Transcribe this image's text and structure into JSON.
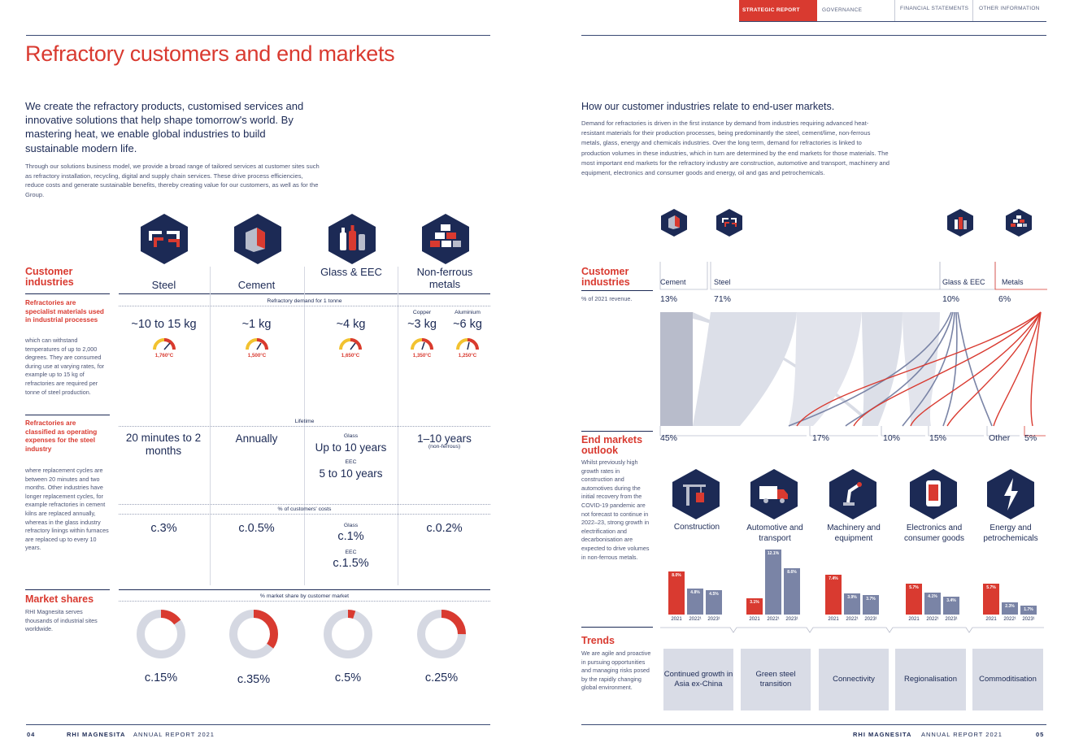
{
  "nav_tabs": [
    {
      "label": "STRATEGIC REPORT",
      "active": true
    },
    {
      "label": "GOVERNANCE",
      "active": false
    },
    {
      "label": "FINANCIAL STATEMENTS",
      "active": false
    },
    {
      "label": "OTHER INFORMATION",
      "active": false
    }
  ],
  "left": {
    "title": "Refractory customers and end markets",
    "intro": "We create the refractory products, customised services and innovative solutions that help shape tomorrow's world. By mastering heat, we enable global industries to build sustainable modern life.",
    "body": "Through our solutions business model, we provide a broad range of tailored services at customer sites such as refractory installation, recycling, digital and supply chain services. These drive process efficiencies, reduce costs and generate sustainable benefits, thereby creating value for our customers, as well as for the Group.",
    "customer_industries_label": "Customer industries",
    "columns": [
      "Steel",
      "Cement",
      "Glass & EEC",
      "Non-ferrous metals"
    ],
    "section1": {
      "heading": "Refractories are specialist materials used in industrial processes",
      "text": "which can withstand temperatures of up to 2,000 degrees. They are consumed during use at varying rates, for example up to 15 kg of refractories are required per tonne of steel production.",
      "band": "Refractory demand for 1 tonne",
      "values": [
        "~10 to 15 kg",
        "~1 kg",
        "~4 kg",
        "~3 kg",
        "~6 kg"
      ],
      "copper_label": "Copper",
      "aluminium_label": "Aluminium",
      "temps": [
        "1,760°C",
        "1,500°C",
        "1,650°C",
        "1,350°C",
        "1,250°C"
      ]
    },
    "section2": {
      "heading": "Refractories are classified as operating expenses for the steel industry",
      "text": "where replacement cycles are between 20 minutes and two months. Other industries have longer replacement cycles, for example refractories in cement kilns are replaced annually, whereas in the glass industry refractory linings within furnaces are replaced up to every 10 years.",
      "band": "Lifetime",
      "steel": "20 minutes to 2 months",
      "cement": "Annually",
      "glass_label": "Glass",
      "glass": "Up to 10 years",
      "eec_label": "EEC",
      "eec": "5 to 10 years",
      "nonferrous": "1–10 years",
      "nonferrous_note": "(non-ferrous)",
      "band2": "% of customers' costs",
      "cost_steel": "c.3%",
      "cost_cement": "c.0.5%",
      "cost_glass_label": "Glass",
      "cost_glass": "c.1%",
      "cost_eec_label": "EEC",
      "cost_eec": "c.1.5%",
      "cost_nonferrous": "c.0.2%"
    },
    "section3": {
      "heading": "Market shares",
      "text": "RHI Magnesita serves thousands of industrial sites worldwide.",
      "band": "% market share by customer market",
      "shares": [
        "c.15%",
        "c.35%",
        "c.5%",
        "c.25%"
      ],
      "share_values": [
        15,
        35,
        5,
        25
      ]
    },
    "footer_page": "04",
    "footer_brand": "RHI MAGNESITA",
    "footer_report": "ANNUAL REPORT 2021"
  },
  "right": {
    "heading": "How our customer industries relate to end-user markets.",
    "body": "Demand for refractories is driven in the first instance by demand from industries requiring advanced heat-resistant materials for their production processes, being predominantly the steel, cement/lime, non-ferrous metals, glass, energy and chemicals industries. Over the long term, demand for refractories is linked to production volumes in these industries, which in turn are determined by the end markets for those materials. The most important end markets for the refractory industry are construction, automotive and transport, machinery and equipment, electronics and consumer goods and energy, oil and gas and petrochemicals.",
    "customer_industries_label": "Customer industries",
    "revenue_note": "% of 2021 revenue.",
    "customers": [
      {
        "name": "Cement",
        "pct": "13%"
      },
      {
        "name": "Steel",
        "pct": "71%"
      },
      {
        "name": "Glass & EEC",
        "pct": "10%"
      },
      {
        "name": "Metals",
        "pct": "6%"
      }
    ],
    "end_markets_label": "End markets outlook",
    "end_markets_text": "Whilst previously high growth rates in construction and automotives during the initial recovery from the COVID-19 pandemic are not forecast to continue in 2022–23, strong growth in electrification and decarbonisation are expected to drive volumes in non-ferrous metals.",
    "end_pcts": [
      "45%",
      "17%",
      "10%",
      "15%",
      "Other",
      "5%"
    ],
    "markets": [
      {
        "name": "Construction",
        "values": [
          "8.0%",
          "4.8%",
          "4.5%"
        ],
        "nums": [
          8.0,
          4.8,
          4.5
        ]
      },
      {
        "name": "Automotive and transport",
        "values": [
          "3.1%",
          "12.1%",
          "8.6%"
        ],
        "nums": [
          3.1,
          12.1,
          8.6
        ]
      },
      {
        "name": "Machinery and equipment",
        "values": [
          "7.4%",
          "3.9%",
          "3.7%"
        ],
        "nums": [
          7.4,
          3.9,
          3.7
        ]
      },
      {
        "name": "Electronics and consumer goods",
        "values": [
          "5.7%",
          "4.1%",
          "3.4%"
        ],
        "nums": [
          5.7,
          4.1,
          3.4
        ]
      },
      {
        "name": "Energy and petrochemicals",
        "values": [
          "5.7%",
          "2.3%",
          "1.7%"
        ],
        "nums": [
          5.7,
          2.3,
          1.7
        ]
      }
    ],
    "years": [
      "2021",
      "2022¹",
      "2023¹"
    ],
    "trends_label": "Trends",
    "trends_text": "We are agile and proactive in pursuing opportunities and managing risks posed by the rapidly changing global environment.",
    "trends": [
      "Continued growth in Asia ex-China",
      "Green steel transition",
      "Connectivity",
      "Regionalisation",
      "Commoditisation"
    ],
    "footer_page": "05",
    "footer_brand": "RHI MAGNESITA",
    "footer_report": "ANNUAL REPORT 2021"
  },
  "colors": {
    "navy": "#1c2a55",
    "red": "#d93a30",
    "gray": "#a9aec0"
  }
}
